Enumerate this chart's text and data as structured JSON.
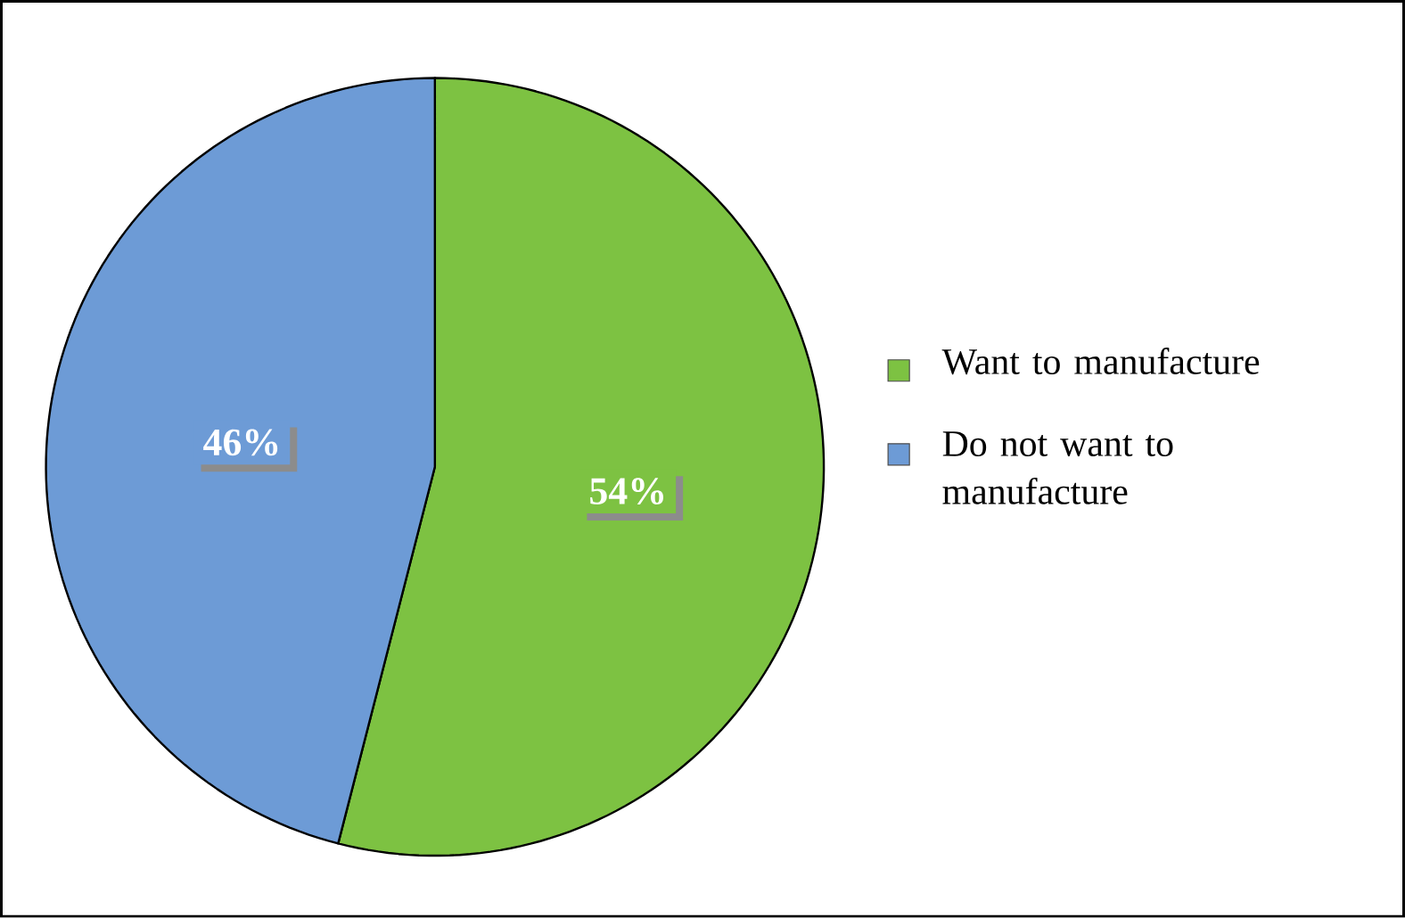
{
  "chart_data": {
    "type": "pie",
    "categories": [
      "Want to manufacture",
      "Do not want to manufacture"
    ],
    "values": [
      54,
      46
    ],
    "colors": [
      "#7dc242",
      "#6d9bd6"
    ],
    "value_labels": [
      "54%",
      "46%"
    ],
    "legend": "right"
  }
}
